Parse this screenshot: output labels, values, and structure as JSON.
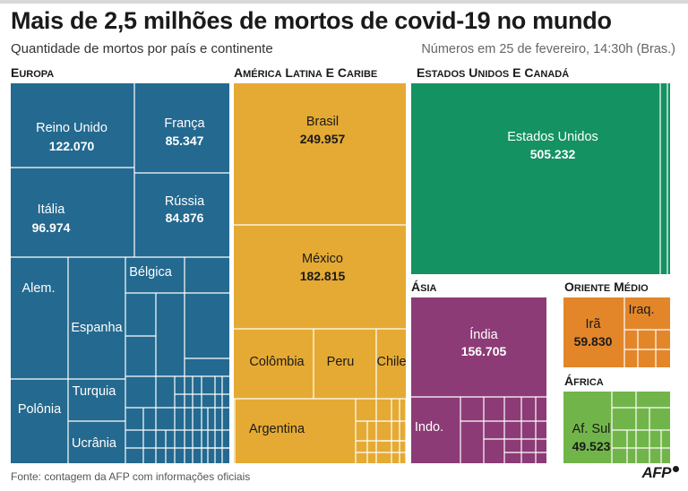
{
  "header": {
    "title": "Mais de 2,5 milhões de mortos de covid-19 no mundo",
    "subtitle": "Quantidade de mortos por país e continente",
    "dateline": "Números em 25 de fevereiro, 14:30h (Bras.)"
  },
  "footer": {
    "source": "Fonte: contagem da AFP com informações oficiais",
    "logo": "AFP"
  },
  "chart_data": {
    "type": "treemap",
    "title": "Mais de 2,5 milhões de mortos de covid-19 no mundo",
    "subtitle": "Quantidade de mortos por país e continente",
    "colors": {
      "europa": "#24698f",
      "america_latina": "#e5aa33",
      "eua_canada": "#149262",
      "asia": "#8c3b76",
      "oriente_medio": "#e3862a",
      "africa": "#71b54a"
    },
    "groups": [
      {
        "id": "europa",
        "name": "Europa",
        "items": [
          {
            "label": "Reino Unido",
            "value": "122.070"
          },
          {
            "label": "França",
            "value": "85.347"
          },
          {
            "label": "Itália",
            "value": "96.974"
          },
          {
            "label": "Rússia",
            "value": "84.876"
          },
          {
            "label": "Alem.",
            "value": ""
          },
          {
            "label": "Espanha",
            "value": ""
          },
          {
            "label": "Bélgica",
            "value": ""
          },
          {
            "label": "Polônia",
            "value": ""
          },
          {
            "label": "Turquia",
            "value": ""
          },
          {
            "label": "Ucrânia",
            "value": ""
          }
        ]
      },
      {
        "id": "america_latina",
        "name": "América Latina e Caribe",
        "items": [
          {
            "label": "Brasil",
            "value": "249.957"
          },
          {
            "label": "México",
            "value": "182.815"
          },
          {
            "label": "Colômbia",
            "value": ""
          },
          {
            "label": "Peru",
            "value": ""
          },
          {
            "label": "Chile",
            "value": ""
          },
          {
            "label": "Argentina",
            "value": ""
          }
        ]
      },
      {
        "id": "eua_canada",
        "name": "Estados Unidos e Canadá",
        "items": [
          {
            "label": "Estados Unidos",
            "value": "505.232"
          }
        ]
      },
      {
        "id": "asia",
        "name": "Ásia",
        "items": [
          {
            "label": "Índia",
            "value": "156.705"
          },
          {
            "label": "Indo.",
            "value": ""
          }
        ]
      },
      {
        "id": "oriente_medio",
        "name": "Oriente Médio",
        "items": [
          {
            "label": "Irã",
            "value": "59.830"
          },
          {
            "label": "Iraq.",
            "value": ""
          }
        ]
      },
      {
        "id": "africa",
        "name": "África",
        "items": [
          {
            "label": "Af. Sul",
            "value": "49.523"
          }
        ]
      }
    ]
  }
}
